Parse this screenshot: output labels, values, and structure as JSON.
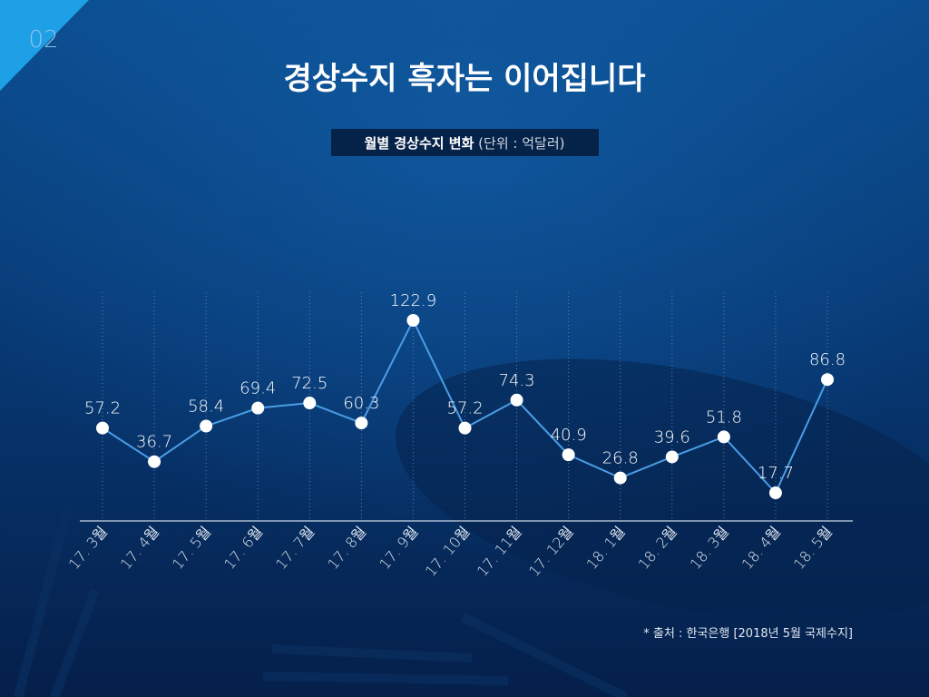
{
  "slide_number": "02",
  "title": "경상수지 흑자는 이어집니다",
  "subtitle": {
    "main": "월별 경상수지 변화",
    "unit": "(단위 : 억달러)"
  },
  "source": "* 출처 : 한국은행 [2018년 5월 국제수지]",
  "chart_data": {
    "type": "line",
    "categories": [
      "17. 3월",
      "17. 4월",
      "17. 5월",
      "17. 6월",
      "17. 7월",
      "17. 8월",
      "17. 9월",
      "17. 10월",
      "17. 11월",
      "17. 12월",
      "18. 1월",
      "18. 2월",
      "18. 3월",
      "18. 4월",
      "18. 5월"
    ],
    "values": [
      57.2,
      36.7,
      58.4,
      69.4,
      72.5,
      60.3,
      122.9,
      57.2,
      74.3,
      40.9,
      26.8,
      39.6,
      51.8,
      17.7,
      86.8
    ],
    "color": "#4a9de6"
  }
}
